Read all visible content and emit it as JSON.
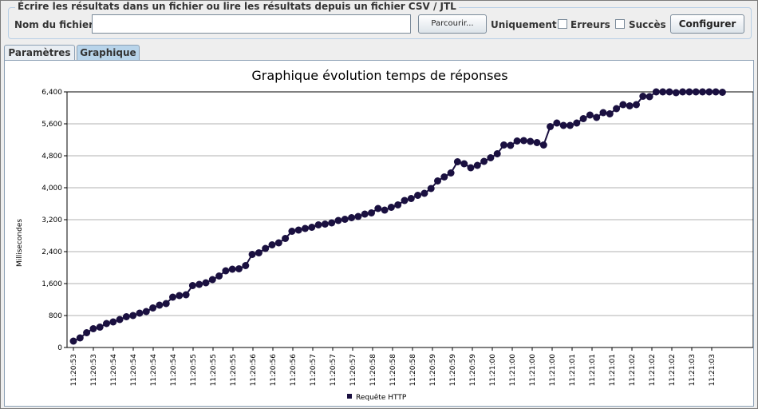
{
  "file_group": {
    "title": "Écrire les résultats dans un fichier ou lire les résultats depuis un fichier CSV / JTL",
    "filename_label": "Nom du fichier :",
    "filename_value": "",
    "browse_label": "Parcourir...",
    "only_label": "Uniquement :",
    "errors_label": "Erreurs",
    "errors_checked": false,
    "success_label": "Succès",
    "success_checked": false,
    "configure_label": "Configurer"
  },
  "tabs": [
    {
      "label": "Paramètres",
      "active": false
    },
    {
      "label": "Graphique",
      "active": true
    }
  ],
  "chart_data": {
    "type": "line",
    "title": "Graphique évolution temps de réponses",
    "ylabel": "Millisecondes",
    "xlabel": "",
    "ylim": [
      0,
      6400
    ],
    "yticks": [
      "0",
      "800",
      "1,600",
      "2,400",
      "3,200",
      "4,000",
      "4,800",
      "5,600",
      "6,400"
    ],
    "ytick_values": [
      0,
      800,
      1600,
      2400,
      3200,
      4000,
      4800,
      5600,
      6400
    ],
    "xtick_labels": [
      "11:20:53",
      "11:20:53",
      "11:20:54",
      "11:20:54",
      "11:20:54",
      "11:20:54",
      "11:20:55",
      "11:20:55",
      "11:20:55",
      "11:20:56",
      "11:20:56",
      "11:20:56",
      "11:20:57",
      "11:20:57",
      "11:20:57",
      "11:20:58",
      "11:20:58",
      "11:20:58",
      "11:20:59",
      "11:20:59",
      "11:20:59",
      "11:21:00",
      "11:21:00",
      "11:21:00",
      "11:21:00",
      "11:21:01",
      "11:21:01",
      "11:21:01",
      "11:21:02",
      "11:21:02",
      "11:21:02",
      "11:21:03",
      "11:21:03"
    ],
    "grid": true,
    "legend_position": "bottom",
    "series_color": "#1a1040",
    "series": [
      {
        "name": "Requête HTTP",
        "values": [
          160,
          240,
          370,
          470,
          510,
          600,
          640,
          700,
          770,
          800,
          860,
          900,
          990,
          1060,
          1100,
          1260,
          1300,
          1320,
          1550,
          1580,
          1620,
          1700,
          1790,
          1920,
          1960,
          1970,
          2050,
          2330,
          2370,
          2480,
          2570,
          2620,
          2730,
          2910,
          2940,
          2980,
          3010,
          3070,
          3090,
          3120,
          3180,
          3210,
          3250,
          3280,
          3340,
          3370,
          3480,
          3440,
          3510,
          3570,
          3680,
          3730,
          3810,
          3860,
          3980,
          4170,
          4270,
          4370,
          4650,
          4600,
          4500,
          4560,
          4660,
          4750,
          4850,
          5070,
          5060,
          5170,
          5180,
          5160,
          5130,
          5070,
          5530,
          5620,
          5560,
          5560,
          5620,
          5730,
          5820,
          5760,
          5880,
          5850,
          5980,
          6080,
          6050,
          6080,
          6290,
          6280,
          6400,
          6400,
          6400,
          6380,
          6400,
          6400,
          6400,
          6400,
          6400,
          6400,
          6390
        ]
      }
    ]
  }
}
